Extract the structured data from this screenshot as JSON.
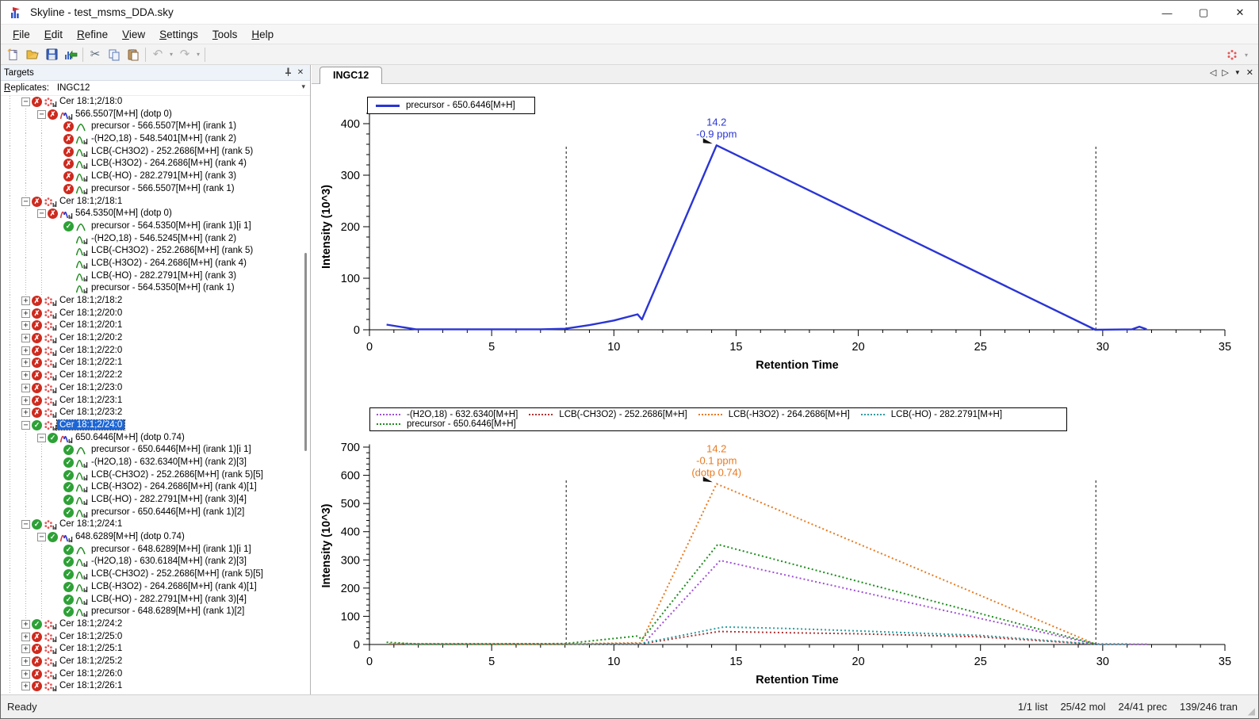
{
  "window": {
    "title": "Skyline - test_msms_DDA.sky",
    "controls": {
      "minimize": "—",
      "maximize": "▢",
      "close": "✕"
    }
  },
  "menu": {
    "items": [
      {
        "label": "File",
        "u": 0
      },
      {
        "label": "Edit",
        "u": 0
      },
      {
        "label": "Refine",
        "u": 0
      },
      {
        "label": "View",
        "u": 0
      },
      {
        "label": "Settings",
        "u": 0
      },
      {
        "label": "Tools",
        "u": 0
      },
      {
        "label": "Help",
        "u": 0
      }
    ]
  },
  "toolbar": {
    "buttons": [
      "new-document",
      "open-file",
      "save-file",
      "import-results",
      "cut",
      "copy",
      "paste",
      "undo",
      "redo",
      "molecule-settings"
    ]
  },
  "targets": {
    "title": "Targets",
    "replicates_label": {
      "label": "Replicates:",
      "u": 0
    },
    "replicates_value": "INGC12",
    "tree": [
      {
        "l": 1,
        "i": "mol",
        "s": "x",
        "e": "-",
        "t": "Cer 18:1;2/18:0"
      },
      {
        "l": 2,
        "i": "prec",
        "s": "x",
        "e": "-",
        "t": "566.5507[M+H] (dotp 0)"
      },
      {
        "l": 3,
        "i": "peak",
        "s": "x",
        "e": "",
        "t": "precursor - 566.5507[M+H] (irank 1)"
      },
      {
        "l": 3,
        "i": "peakb",
        "s": "x",
        "e": "",
        "t": "-(H2O,18) - 548.5401[M+H] (rank 2)"
      },
      {
        "l": 3,
        "i": "peakb",
        "s": "x",
        "e": "",
        "t": "LCB(-CH3O2) - 252.2686[M+H] (rank 5)"
      },
      {
        "l": 3,
        "i": "peakb",
        "s": "x",
        "e": "",
        "t": "LCB(-H3O2) - 264.2686[M+H] (rank 4)"
      },
      {
        "l": 3,
        "i": "peakb",
        "s": "x",
        "e": "",
        "t": "LCB(-HO) - 282.2791[M+H] (rank 3)"
      },
      {
        "l": 3,
        "i": "peakb",
        "s": "x",
        "e": "",
        "t": "precursor - 566.5507[M+H] (rank 1)"
      },
      {
        "l": 1,
        "i": "mol",
        "s": "x",
        "e": "-",
        "t": "Cer 18:1;2/18:1"
      },
      {
        "l": 2,
        "i": "prec",
        "s": "x",
        "e": "-",
        "t": "564.5350[M+H] (dotp 0)"
      },
      {
        "l": 3,
        "i": "peak",
        "s": "v",
        "e": "",
        "t": "precursor - 564.5350[M+H] (irank 1)[i 1]"
      },
      {
        "l": 3,
        "i": "peakb",
        "s": "",
        "e": "",
        "t": "-(H2O,18) - 546.5245[M+H] (rank 2)"
      },
      {
        "l": 3,
        "i": "peakb",
        "s": "",
        "e": "",
        "t": "LCB(-CH3O2) - 252.2686[M+H] (rank 5)"
      },
      {
        "l": 3,
        "i": "peakb",
        "s": "",
        "e": "",
        "t": "LCB(-H3O2) - 264.2686[M+H] (rank 4)"
      },
      {
        "l": 3,
        "i": "peakb",
        "s": "",
        "e": "",
        "t": "LCB(-HO) - 282.2791[M+H] (rank 3)"
      },
      {
        "l": 3,
        "i": "peakb",
        "s": "",
        "e": "",
        "t": "precursor - 564.5350[M+H] (rank 1)"
      },
      {
        "l": 1,
        "i": "mol",
        "s": "x",
        "e": "+",
        "t": "Cer 18:1;2/18:2"
      },
      {
        "l": 1,
        "i": "mol",
        "s": "x",
        "e": "+",
        "t": "Cer 18:1;2/20:0"
      },
      {
        "l": 1,
        "i": "mol",
        "s": "x",
        "e": "+",
        "t": "Cer 18:1;2/20:1"
      },
      {
        "l": 1,
        "i": "mol",
        "s": "x",
        "e": "+",
        "t": "Cer 18:1;2/20:2"
      },
      {
        "l": 1,
        "i": "mol",
        "s": "x",
        "e": "+",
        "t": "Cer 18:1;2/22:0"
      },
      {
        "l": 1,
        "i": "mol",
        "s": "x",
        "e": "+",
        "t": "Cer 18:1;2/22:1"
      },
      {
        "l": 1,
        "i": "mol",
        "s": "x",
        "e": "+",
        "t": "Cer 18:1;2/22:2"
      },
      {
        "l": 1,
        "i": "mol",
        "s": "x",
        "e": "+",
        "t": "Cer 18:1;2/23:0"
      },
      {
        "l": 1,
        "i": "mol",
        "s": "x",
        "e": "+",
        "t": "Cer 18:1;2/23:1"
      },
      {
        "l": 1,
        "i": "mol",
        "s": "x",
        "e": "+",
        "t": "Cer 18:1;2/23:2"
      },
      {
        "l": 1,
        "i": "mol",
        "s": "v",
        "e": "-",
        "t": "Cer 18:1;2/24:0",
        "sel": true
      },
      {
        "l": 2,
        "i": "prec",
        "s": "v",
        "e": "-",
        "t": "650.6446[M+H] (dotp 0.74)"
      },
      {
        "l": 3,
        "i": "peak",
        "s": "v",
        "e": "",
        "t": "precursor - 650.6446[M+H] (irank 1)[i 1]"
      },
      {
        "l": 3,
        "i": "peakb",
        "s": "v",
        "e": "",
        "t": "-(H2O,18) - 632.6340[M+H] (rank 2)[3]"
      },
      {
        "l": 3,
        "i": "peakb",
        "s": "v",
        "e": "",
        "t": "LCB(-CH3O2) - 252.2686[M+H] (rank 5)[5]"
      },
      {
        "l": 3,
        "i": "peakb",
        "s": "v",
        "e": "",
        "t": "LCB(-H3O2) - 264.2686[M+H] (rank 4)[1]"
      },
      {
        "l": 3,
        "i": "peakb",
        "s": "v",
        "e": "",
        "t": "LCB(-HO) - 282.2791[M+H] (rank 3)[4]"
      },
      {
        "l": 3,
        "i": "peakb",
        "s": "v",
        "e": "",
        "t": "precursor - 650.6446[M+H] (rank 1)[2]"
      },
      {
        "l": 1,
        "i": "mol",
        "s": "v",
        "e": "-",
        "t": "Cer 18:1;2/24:1"
      },
      {
        "l": 2,
        "i": "prec",
        "s": "v",
        "e": "-",
        "t": "648.6289[M+H] (dotp 0.74)"
      },
      {
        "l": 3,
        "i": "peak",
        "s": "v",
        "e": "",
        "t": "precursor - 648.6289[M+H] (irank 1)[i 1]"
      },
      {
        "l": 3,
        "i": "peakb",
        "s": "v",
        "e": "",
        "t": "-(H2O,18) - 630.6184[M+H] (rank 2)[3]"
      },
      {
        "l": 3,
        "i": "peakb",
        "s": "v",
        "e": "",
        "t": "LCB(-CH3O2) - 252.2686[M+H] (rank 5)[5]"
      },
      {
        "l": 3,
        "i": "peakb",
        "s": "v",
        "e": "",
        "t": "LCB(-H3O2) - 264.2686[M+H] (rank 4)[1]"
      },
      {
        "l": 3,
        "i": "peakb",
        "s": "v",
        "e": "",
        "t": "LCB(-HO) - 282.2791[M+H] (rank 3)[4]"
      },
      {
        "l": 3,
        "i": "peakb",
        "s": "v",
        "e": "",
        "t": "precursor - 648.6289[M+H] (rank 1)[2]"
      },
      {
        "l": 1,
        "i": "mol",
        "s": "v",
        "e": "+",
        "t": "Cer 18:1;2/24:2"
      },
      {
        "l": 1,
        "i": "mol",
        "s": "x",
        "e": "+",
        "t": "Cer 18:1;2/25:0"
      },
      {
        "l": 1,
        "i": "mol",
        "s": "x",
        "e": "+",
        "t": "Cer 18:1;2/25:1"
      },
      {
        "l": 1,
        "i": "mol",
        "s": "x",
        "e": "+",
        "t": "Cer 18:1;2/25:2"
      },
      {
        "l": 1,
        "i": "mol",
        "s": "x",
        "e": "+",
        "t": "Cer 18:1;2/26:0"
      },
      {
        "l": 1,
        "i": "mol",
        "s": "x",
        "e": "+",
        "t": "Cer 18:1;2/26:1"
      }
    ]
  },
  "chart_pane": {
    "tab": "INGC12"
  },
  "chart_data": [
    {
      "type": "line",
      "title": "",
      "xlabel": "Retention Time",
      "ylabel": "Intensity (10^3)",
      "xlim": [
        0,
        35
      ],
      "ylim": [
        0,
        420
      ],
      "xtick_major": 5,
      "xtick_minor": 1,
      "ytick_major": 100,
      "ytick_minor": 20,
      "grid": false,
      "legend_position": "top-left",
      "series": [
        {
          "name": "precursor - 650.6446[M+H]",
          "color": "#2a35d4",
          "style": "solid",
          "points": [
            [
              0.7,
              10
            ],
            [
              1.9,
              1
            ],
            [
              3,
              1
            ],
            [
              5,
              1
            ],
            [
              7,
              1
            ],
            [
              8,
              2
            ],
            [
              9,
              9
            ],
            [
              10,
              18
            ],
            [
              10.97,
              30
            ],
            [
              11.15,
              20
            ],
            [
              14.2,
              358
            ],
            [
              29.7,
              0
            ],
            [
              31.2,
              1
            ],
            [
              31.5,
              6
            ],
            [
              31.8,
              1
            ]
          ]
        }
      ],
      "peak_boundaries": [
        8.05,
        29.72
      ],
      "boundary_top": 357,
      "annotation": {
        "x": 14.2,
        "y": 358,
        "lines": [
          "14.2",
          "-0.9 ppm"
        ],
        "color": "#2a35d4"
      }
    },
    {
      "type": "line",
      "title": "",
      "xlabel": "Retention Time",
      "ylabel": "Intensity (10^3)",
      "xlim": [
        0,
        35
      ],
      "ylim": [
        0,
        710
      ],
      "xtick_major": 5,
      "xtick_minor": 1,
      "ytick_major": 100,
      "ytick_minor": 20,
      "grid": false,
      "legend_position": "top-span",
      "series": [
        {
          "name": "-(H2O,18) - 632.6340[M+H]",
          "color": "#a050d8",
          "style": "dotted",
          "points": [
            [
              1.5,
              1
            ],
            [
              8,
              1
            ],
            [
              10.9,
              3
            ],
            [
              11.2,
              2
            ],
            [
              14.35,
              298
            ],
            [
              29.7,
              1
            ],
            [
              31.8,
              1
            ]
          ]
        },
        {
          "name": "LCB(-CH3O2) - 252.2686[M+H]",
          "color": "#b03434",
          "style": "dotted",
          "points": [
            [
              1.5,
              1
            ],
            [
              8,
              1
            ],
            [
              11.1,
              2
            ],
            [
              14.3,
              46
            ],
            [
              17,
              42
            ],
            [
              20,
              38
            ],
            [
              25,
              27
            ],
            [
              29.6,
              1
            ]
          ]
        },
        {
          "name": "LCB(-H3O2) - 264.2686[M+H]",
          "color": "#e87a20",
          "style": "dotted",
          "points": [
            [
              0.8,
              3
            ],
            [
              8,
              2
            ],
            [
              10.9,
              6
            ],
            [
              11.1,
              5
            ],
            [
              14.2,
              570
            ],
            [
              29.7,
              1
            ]
          ]
        },
        {
          "name": "LCB(-HO) - 282.2791[M+H]",
          "color": "#2f9da0",
          "style": "dotted",
          "points": [
            [
              1.5,
              1
            ],
            [
              8,
              1
            ],
            [
              11.1,
              3
            ],
            [
              14.5,
              62
            ],
            [
              17,
              57
            ],
            [
              20,
              48
            ],
            [
              25,
              32
            ],
            [
              29.6,
              2
            ],
            [
              31,
              2
            ]
          ]
        },
        {
          "name": "precursor - 650.6446[M+H]",
          "color": "#1e8c1e",
          "style": "dotted",
          "points": [
            [
              0.7,
              8
            ],
            [
              1.9,
              2
            ],
            [
              8,
              3
            ],
            [
              9,
              12
            ],
            [
              10.97,
              30
            ],
            [
              11.15,
              18
            ],
            [
              14.25,
              355
            ],
            [
              29.7,
              2
            ]
          ]
        }
      ],
      "peak_boundaries": [
        8.05,
        29.72
      ],
      "boundary_top": 590,
      "annotation": {
        "x": 14.2,
        "y": 570,
        "lines": [
          "14.2",
          "-0.1 ppm",
          "(dotp 0.74)"
        ],
        "color": "#e87a20"
      }
    }
  ],
  "status_bar": {
    "left": "Ready",
    "segments": [
      "1/1 list",
      "25/42 mol",
      "24/41 prec",
      "139/246 tran"
    ]
  },
  "colors": {
    "selection": "#1c66d6",
    "error_status": "#cd2a1e",
    "ok_status": "#2da136"
  }
}
